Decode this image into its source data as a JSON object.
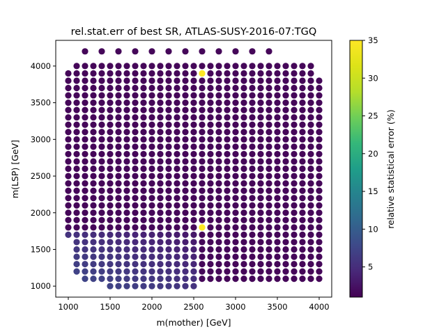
{
  "chart_data": {
    "type": "scatter",
    "title": "rel.stat.err of best SR, ATLAS-SUSY-2016-07:TGQ",
    "xlabel": "m(mother) [GeV]",
    "ylabel": "m(LSP) [GeV]",
    "colorbar_label": "relative statistical error (%)",
    "xlim": [
      850,
      4150
    ],
    "ylim": [
      850,
      4350
    ],
    "xticks": [
      1000,
      1500,
      2000,
      2500,
      3000,
      3500,
      4000
    ],
    "yticks": [
      1000,
      1500,
      2000,
      2500,
      3000,
      3500,
      4000
    ],
    "clim": [
      1,
      35
    ],
    "cticks": [
      5,
      10,
      15,
      20,
      25,
      30,
      35
    ],
    "colormap": "viridis",
    "grid": false,
    "grid_description": "Points at m(mother) 1000-4000 GeV in 100 GeV steps and m(LSP) 1000-4000 GeV in 100 GeV steps, plus a top row at m(LSP)=4200 GeV for m(mother)=1200-3400 GeV in 200 GeV steps.",
    "rows_mother_range_by_lsp": [
      {
        "lsp": 4200,
        "mother_min": 1200,
        "mother_max": 3400,
        "step": 200
      },
      {
        "lsp": 4000,
        "mother_min": 1100,
        "mother_max": 3900,
        "step": 100
      },
      {
        "lsp": 3900,
        "mother_min": 1000,
        "mother_max": 3900,
        "step": 100
      },
      {
        "lsp": 1700,
        "mother_min": 1000,
        "mother_max": 4000,
        "step": 100
      },
      {
        "lsp": 1600,
        "mother_min": 1100,
        "mother_max": 4000,
        "step": 100
      },
      {
        "lsp": 1500,
        "mother_min": 1100,
        "mother_max": 4000,
        "step": 100
      },
      {
        "lsp": 1400,
        "mother_min": 1100,
        "mother_max": 4000,
        "step": 100
      },
      {
        "lsp": 1300,
        "mother_min": 1100,
        "mother_max": 4000,
        "step": 100
      },
      {
        "lsp": 1200,
        "mother_min": 1100,
        "mother_max": 4000,
        "step": 100
      },
      {
        "lsp": 1100,
        "mother_min": 1200,
        "mother_max": 4000,
        "step": 100
      },
      {
        "lsp": 1000,
        "mother_min": 1500,
        "mother_max": 2500,
        "step": 100
      }
    ],
    "default_error": 1.5,
    "highlight_points": [
      {
        "x": 2600,
        "y": 3900,
        "err": 35
      },
      {
        "x": 2600,
        "y": 1800,
        "err": 35
      }
    ],
    "elevated_error_region": {
      "x_max": 2500,
      "y_max": 1700,
      "err_range": [
        3,
        8
      ]
    }
  }
}
